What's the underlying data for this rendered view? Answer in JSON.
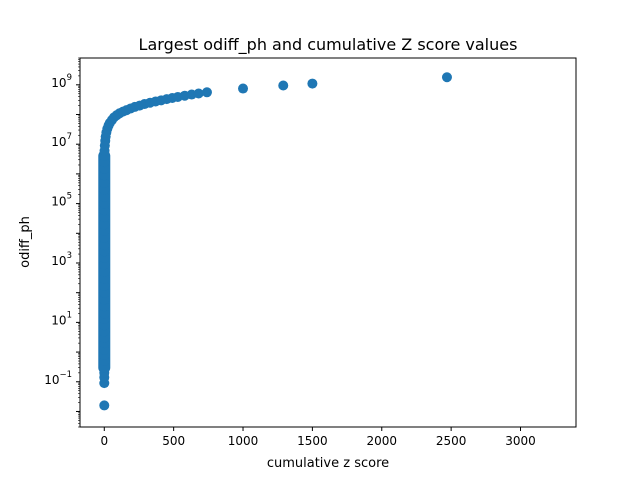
{
  "chart_data": {
    "type": "scatter",
    "title": "Largest odiff_ph and cumulative Z score values",
    "xlabel": "cumulative z score",
    "ylabel": "odiff_ph",
    "xlim": [
      -175,
      3400
    ],
    "ylim": [
      0.003,
      8000000000
    ],
    "yscale": "log",
    "grid": false,
    "marker_color": "#1f77b4",
    "x_ticks": [
      {
        "value": 0,
        "label": "0"
      },
      {
        "value": 500,
        "label": "500"
      },
      {
        "value": 1000,
        "label": "1000"
      },
      {
        "value": 1500,
        "label": "1500"
      },
      {
        "value": 2000,
        "label": "2000"
      },
      {
        "value": 2500,
        "label": "2500"
      },
      {
        "value": 3000,
        "label": "3000"
      }
    ],
    "y_ticks": [
      {
        "value": 0.1,
        "base": "10",
        "exp": "−1"
      },
      {
        "value": 10,
        "base": "10",
        "exp": "1"
      },
      {
        "value": 1000,
        "base": "10",
        "exp": "3"
      },
      {
        "value": 100000,
        "base": "10",
        "exp": "5"
      },
      {
        "value": 10000000,
        "base": "10",
        "exp": "7"
      },
      {
        "value": 1000000000,
        "base": "10",
        "exp": "9"
      }
    ],
    "points": [
      {
        "x": 0,
        "y": 0.016
      },
      {
        "x": 0,
        "y": 0.09
      },
      {
        "x": 0,
        "y": 0.14
      },
      {
        "x": 0,
        "y": 0.2
      },
      {
        "x": 0,
        "y": 0.3
      },
      {
        "x": 0,
        "y": 0.5
      },
      {
        "x": 0,
        "y": 0.8
      },
      {
        "x": 0,
        "y": 1.2
      },
      {
        "x": 0,
        "y": 2
      },
      {
        "x": 0,
        "y": 3
      },
      {
        "x": 0,
        "y": 5
      },
      {
        "x": 0,
        "y": 8
      },
      {
        "x": 0,
        "y": 13
      },
      {
        "x": 0,
        "y": 20
      },
      {
        "x": 0,
        "y": 35
      },
      {
        "x": 0,
        "y": 60
      },
      {
        "x": 0,
        "y": 100
      },
      {
        "x": 0,
        "y": 170
      },
      {
        "x": 0,
        "y": 300
      },
      {
        "x": 0,
        "y": 500
      },
      {
        "x": 0,
        "y": 900
      },
      {
        "x": 0,
        "y": 1500
      },
      {
        "x": 0,
        "y": 2500
      },
      {
        "x": 0,
        "y": 4000
      },
      {
        "x": 0,
        "y": 7000
      },
      {
        "x": 0,
        "y": 12000
      },
      {
        "x": 0,
        "y": 20000
      },
      {
        "x": 0,
        "y": 35000
      },
      {
        "x": 0,
        "y": 60000
      },
      {
        "x": 0,
        "y": 100000
      },
      {
        "x": 0,
        "y": 170000
      },
      {
        "x": 0,
        "y": 300000
      },
      {
        "x": 0,
        "y": 500000
      },
      {
        "x": 0,
        "y": 900000
      },
      {
        "x": 0,
        "y": 1500000
      },
      {
        "x": 0,
        "y": 2500000
      },
      {
        "x": 0,
        "y": 4000000
      },
      {
        "x": 2,
        "y": 6000000
      },
      {
        "x": 4,
        "y": 9000000
      },
      {
        "x": 7,
        "y": 13000000
      },
      {
        "x": 10,
        "y": 18000000
      },
      {
        "x": 15,
        "y": 25000000
      },
      {
        "x": 22,
        "y": 33000000
      },
      {
        "x": 30,
        "y": 42000000
      },
      {
        "x": 40,
        "y": 52000000
      },
      {
        "x": 55,
        "y": 65000000
      },
      {
        "x": 70,
        "y": 80000000
      },
      {
        "x": 90,
        "y": 95000000
      },
      {
        "x": 110,
        "y": 110000000
      },
      {
        "x": 135,
        "y": 125000000
      },
      {
        "x": 160,
        "y": 140000000
      },
      {
        "x": 190,
        "y": 160000000
      },
      {
        "x": 220,
        "y": 180000000
      },
      {
        "x": 255,
        "y": 200000000
      },
      {
        "x": 290,
        "y": 225000000
      },
      {
        "x": 330,
        "y": 250000000
      },
      {
        "x": 370,
        "y": 275000000
      },
      {
        "x": 410,
        "y": 300000000
      },
      {
        "x": 450,
        "y": 330000000
      },
      {
        "x": 490,
        "y": 360000000
      },
      {
        "x": 530,
        "y": 390000000
      },
      {
        "x": 580,
        "y": 430000000
      },
      {
        "x": 630,
        "y": 470000000
      },
      {
        "x": 680,
        "y": 510000000
      },
      {
        "x": 740,
        "y": 560000000
      },
      {
        "x": 1000,
        "y": 750000000
      },
      {
        "x": 1290,
        "y": 950000000
      },
      {
        "x": 1500,
        "y": 1100000000
      },
      {
        "x": 2470,
        "y": 1800000000
      }
    ]
  }
}
